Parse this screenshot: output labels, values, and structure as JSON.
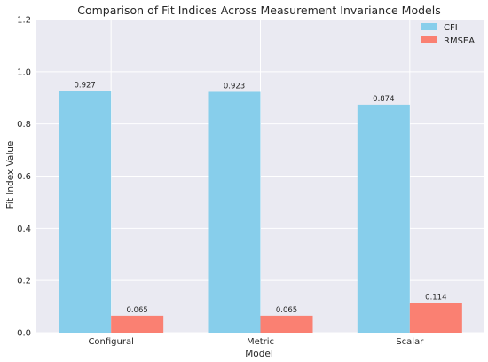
{
  "chart_data": {
    "type": "bar",
    "title": "Comparison of Fit Indices Across Measurement Invariance Models",
    "xlabel": "Model",
    "ylabel": "Fit Index Value",
    "categories": [
      "Configural",
      "Metric",
      "Scalar"
    ],
    "series": [
      {
        "name": "CFI",
        "values": [
          0.927,
          0.923,
          0.874
        ],
        "labels": [
          "0.927",
          "0.923",
          "0.874"
        ],
        "color": "#87ceeb"
      },
      {
        "name": "RMSEA",
        "values": [
          0.065,
          0.065,
          0.114
        ],
        "labels": [
          "0.065",
          "0.065",
          "0.114"
        ],
        "color": "#fa8072"
      }
    ],
    "ylim": [
      0,
      1.2
    ],
    "yticks": [
      "0.0",
      "0.2",
      "0.4",
      "0.6",
      "0.8",
      "1.0",
      "1.2"
    ],
    "grid": true,
    "legend_position": "top-right",
    "background_color": "#eaeaf2",
    "grid_color": "#ffffff"
  }
}
